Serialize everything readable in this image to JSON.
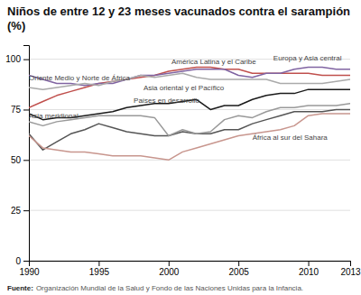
{
  "chart_data": {
    "type": "line",
    "title": "Niños de entre 12 y 23 meses vacunados contra el sarampión (%)",
    "source": [
      "Fuente:",
      "Organización Mundial de la Salud y Fondo de las Naciones Unidas para la Infancia."
    ],
    "x": [
      1990,
      1991,
      1992,
      1993,
      1994,
      1995,
      1996,
      1997,
      1998,
      1999,
      2000,
      2001,
      2002,
      2003,
      2004,
      2005,
      2006,
      2007,
      2008,
      2009,
      2010,
      2011,
      2012,
      2013
    ],
    "series": [
      {
        "name": "América Latina y el Caribe",
        "color": "#c0504d",
        "values": [
          76,
          79,
          82,
          84,
          86,
          88,
          89,
          90,
          91,
          92,
          94,
          95,
          96,
          96,
          95,
          95,
          93,
          93,
          93,
          93,
          93,
          92,
          92,
          92
        ]
      },
      {
        "name": "Europa y Asia central",
        "color": "#8064a2",
        "values": [
          92,
          90,
          88,
          88,
          87,
          88,
          88,
          90,
          92,
          92,
          93,
          94,
          95,
          95,
          95,
          92,
          91,
          93,
          93,
          95,
          96,
          96,
          95,
          95
        ]
      },
      {
        "name": "Oriente Medio y Norte de África",
        "color": "#aaaaaa",
        "values": [
          86,
          85,
          86,
          87,
          88,
          87,
          89,
          90,
          92,
          91,
          92,
          93,
          91,
          90,
          90,
          90,
          90,
          90,
          88,
          88,
          88,
          88,
          89,
          90
        ]
      },
      {
        "name": "Asia oriental y el Pacífico",
        "color": "#1a1a1a",
        "values": [
          73,
          70,
          71,
          71,
          72,
          73,
          74,
          76,
          77,
          78,
          78,
          79,
          80,
          75,
          77,
          77,
          80,
          82,
          83,
          83,
          85,
          85,
          85,
          85
        ]
      },
      {
        "name": "Asia meridional",
        "color": "#555555",
        "values": [
          63,
          55,
          59,
          63,
          65,
          68,
          66,
          64,
          63,
          62,
          62,
          64,
          63,
          63,
          65,
          65,
          68,
          70,
          72,
          74,
          74,
          74,
          75,
          75
        ]
      },
      {
        "name": "Países en desarrollo",
        "color": "#999999",
        "values": [
          69,
          67,
          69,
          70,
          71,
          72,
          72,
          72,
          72,
          71,
          62,
          65,
          63,
          64,
          70,
          72,
          71,
          74,
          76,
          76,
          77,
          77,
          77,
          78
        ]
      },
      {
        "name": "África al sur del Sahara",
        "color": "#c8968e",
        "values": [
          62,
          56,
          55,
          54,
          54,
          53,
          52,
          52,
          52,
          51,
          50,
          54,
          56,
          58,
          60,
          62,
          63,
          64,
          65,
          67,
          72,
          73,
          73,
          73
        ]
      }
    ],
    "xlim": [
      1990,
      2013
    ],
    "xticks": [
      1990,
      1995,
      2000,
      2005,
      2010,
      2013
    ],
    "ylim": [
      0,
      107
    ],
    "yticks": [
      0,
      25,
      50,
      75,
      100
    ],
    "grid": true,
    "annotations": [
      {
        "text": "América Latina y el Caribe",
        "x": 2000.2,
        "y": 96.5
      },
      {
        "text": "Europa y Asia central",
        "x": 2007.5,
        "y": 98.5
      },
      {
        "text": "Oriente Medio y Norte de África",
        "x": 1990.0,
        "y": 88.5
      },
      {
        "text": "Asia oriental y el Pacífico",
        "x": 1998.2,
        "y": 83.5
      },
      {
        "text": "Asia meridional",
        "x": 1990.0,
        "y": 70.0
      },
      {
        "text": "Países en desarrollo",
        "x": 1997.5,
        "y": 77.5
      },
      {
        "text": "África al sur del Sahara",
        "x": 2006.0,
        "y": 59.0
      }
    ]
  }
}
